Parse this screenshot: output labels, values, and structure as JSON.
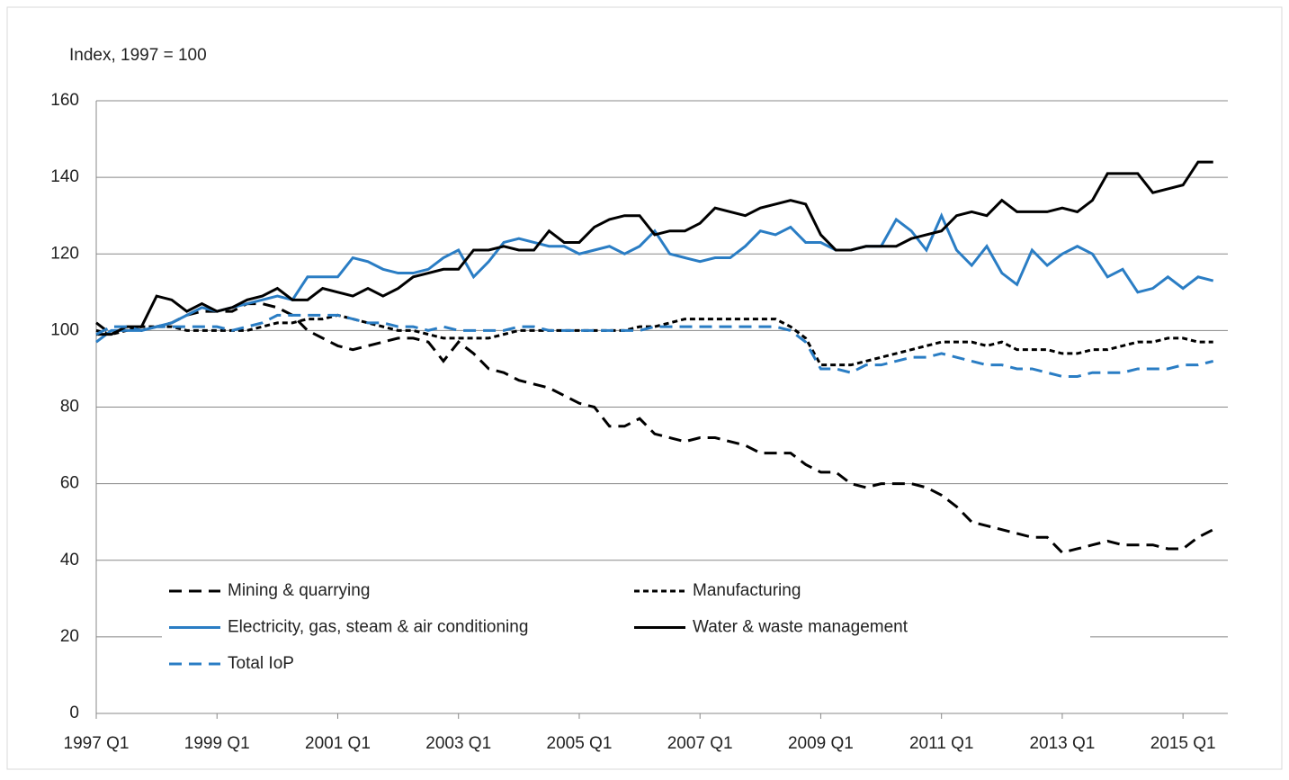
{
  "chart_data": {
    "type": "line",
    "y_axis_label": "Index, 1997 = 100",
    "categories": [
      "1997 Q1",
      null,
      null,
      null,
      null,
      null,
      null,
      null,
      "1999 Q1",
      null,
      null,
      null,
      null,
      null,
      null,
      null,
      "2001 Q1",
      null,
      null,
      null,
      null,
      null,
      null,
      null,
      "2003 Q1",
      null,
      null,
      null,
      null,
      null,
      null,
      null,
      "2005 Q1",
      null,
      null,
      null,
      null,
      null,
      null,
      null,
      "2007 Q1",
      null,
      null,
      null,
      null,
      null,
      null,
      null,
      "2009 Q1",
      null,
      null,
      null,
      null,
      null,
      null,
      null,
      "2011 Q1",
      null,
      null,
      null,
      null,
      null,
      null,
      null,
      "2013 Q1",
      null,
      null,
      null,
      null,
      null,
      null,
      null,
      "2015 Q1",
      null,
      null
    ],
    "ylim": [
      0,
      160
    ],
    "yticks": [
      0,
      20,
      40,
      60,
      80,
      100,
      120,
      140,
      160
    ],
    "grid": true,
    "series": [
      {
        "name": "Mining & quarrying",
        "color": "#000000",
        "dash": "long",
        "values": [
          102,
          99,
          101,
          100,
          101,
          102,
          104,
          105,
          105,
          105,
          107,
          107,
          106,
          104,
          100,
          98,
          96,
          95,
          96,
          97,
          98,
          98,
          97,
          92,
          97,
          94,
          90,
          89,
          87,
          86,
          85,
          83,
          81,
          80,
          75,
          75,
          77,
          73,
          72,
          71,
          72,
          72,
          71,
          70,
          68,
          68,
          68,
          65,
          63,
          63,
          60,
          59,
          60,
          60,
          60,
          59,
          57,
          54,
          50,
          49,
          48,
          47,
          46,
          46,
          42,
          43,
          44,
          45,
          44,
          44,
          44,
          43,
          43,
          46,
          48
        ]
      },
      {
        "name": "Manufacturing",
        "color": "#000000",
        "dash": "short",
        "values": [
          100,
          99,
          100,
          101,
          101,
          101,
          100,
          100,
          100,
          100,
          100,
          101,
          102,
          102,
          103,
          103,
          104,
          103,
          102,
          101,
          100,
          100,
          99,
          98,
          98,
          98,
          98,
          99,
          100,
          100,
          100,
          100,
          100,
          100,
          100,
          100,
          101,
          101,
          102,
          103,
          103,
          103,
          103,
          103,
          103,
          103,
          101,
          98,
          91,
          91,
          91,
          92,
          93,
          94,
          95,
          96,
          97,
          97,
          97,
          96,
          97,
          95,
          95,
          95,
          94,
          94,
          95,
          95,
          96,
          97,
          97,
          98,
          98,
          97,
          97
        ]
      },
      {
        "name": "Electricity, gas, steam & air conditioning",
        "color": "#2a7dc4",
        "dash": "solid",
        "values": [
          97,
          100,
          100,
          100,
          101,
          102,
          104,
          106,
          105,
          106,
          107,
          108,
          109,
          108,
          114,
          114,
          114,
          119,
          118,
          116,
          115,
          115,
          116,
          119,
          121,
          114,
          118,
          123,
          124,
          123,
          122,
          122,
          120,
          121,
          122,
          120,
          122,
          126,
          120,
          119,
          118,
          119,
          119,
          122,
          126,
          125,
          127,
          123,
          123,
          121,
          121,
          122,
          122,
          129,
          126,
          121,
          130,
          121,
          117,
          122,
          115,
          112,
          121,
          117,
          120,
          122,
          120,
          114,
          116,
          110,
          111,
          114,
          111,
          114,
          113
        ]
      },
      {
        "name": "Water & waste management",
        "color": "#000000",
        "dash": "solid",
        "values": [
          99,
          99,
          101,
          101,
          109,
          108,
          105,
          107,
          105,
          106,
          108,
          109,
          111,
          108,
          108,
          111,
          110,
          109,
          111,
          109,
          111,
          114,
          115,
          116,
          116,
          121,
          121,
          122,
          121,
          121,
          126,
          123,
          123,
          127,
          129,
          130,
          130,
          125,
          126,
          126,
          128,
          132,
          131,
          130,
          132,
          133,
          134,
          133,
          125,
          121,
          121,
          122,
          122,
          122,
          124,
          125,
          126,
          130,
          131,
          130,
          134,
          131,
          131,
          131,
          132,
          131,
          134,
          141,
          141,
          141,
          136,
          137,
          138,
          144,
          144
        ]
      },
      {
        "name": "Total IoP",
        "color": "#2a7dc4",
        "dash": "long",
        "values": [
          99,
          101,
          101,
          100,
          101,
          101,
          101,
          101,
          101,
          100,
          101,
          102,
          104,
          104,
          104,
          104,
          104,
          103,
          102,
          102,
          101,
          101,
          100,
          101,
          100,
          100,
          100,
          100,
          101,
          101,
          100,
          100,
          100,
          100,
          100,
          100,
          100,
          101,
          101,
          101,
          101,
          101,
          101,
          101,
          101,
          101,
          100,
          97,
          90,
          90,
          89,
          91,
          91,
          92,
          93,
          93,
          94,
          93,
          92,
          91,
          91,
          90,
          90,
          89,
          88,
          88,
          89,
          89,
          89,
          90,
          90,
          90,
          91,
          91,
          92
        ]
      }
    ]
  }
}
